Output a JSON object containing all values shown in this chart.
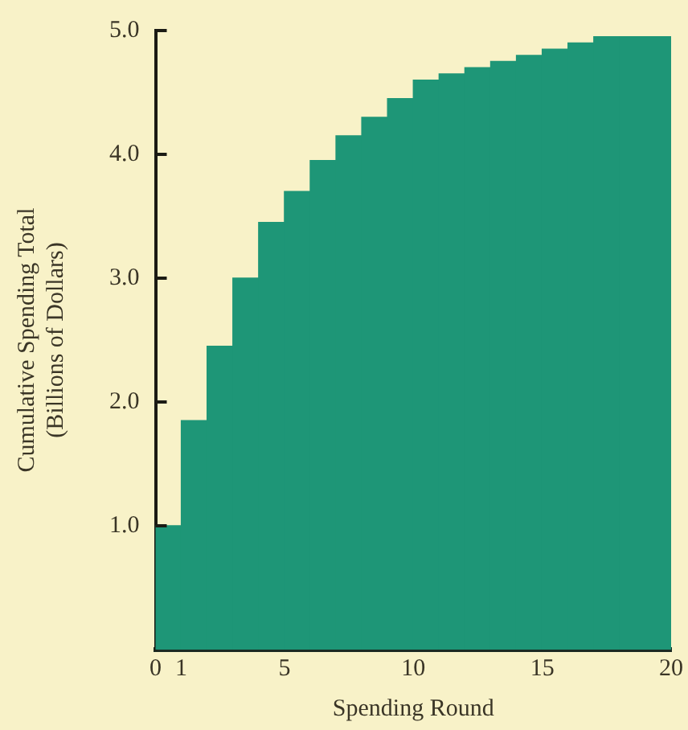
{
  "chart_data": {
    "type": "histogram",
    "xlabel": "Spending Round",
    "ylabel": "Cumulative Spending Total\n(Billions of Dollars)",
    "bins": [
      0,
      1,
      2,
      3,
      4,
      5,
      6,
      7,
      8,
      9,
      10,
      11,
      12,
      13,
      14,
      15,
      16,
      17,
      18,
      19,
      20
    ],
    "values": [
      1.0,
      1.85,
      2.45,
      3.0,
      3.45,
      3.7,
      3.95,
      4.15,
      4.3,
      4.45,
      4.6,
      4.65,
      4.7,
      4.75,
      4.8,
      4.85,
      4.9,
      4.95,
      4.95,
      4.95
    ],
    "color": "#1e9677",
    "xlim": [
      0,
      20
    ],
    "xticks": [
      0,
      1,
      5,
      10,
      15,
      20
    ],
    "ylim": [
      0,
      5
    ],
    "yticks": [
      {
        "value": 0,
        "label": null
      },
      {
        "value": 1,
        "label": "1.0"
      },
      {
        "value": 2,
        "label": "2.0"
      },
      {
        "value": 3,
        "label": "3.0"
      },
      {
        "value": 4,
        "label": "4.0"
      },
      {
        "value": 5,
        "label": "5.0"
      }
    ],
    "grid": false,
    "legend": false
  }
}
